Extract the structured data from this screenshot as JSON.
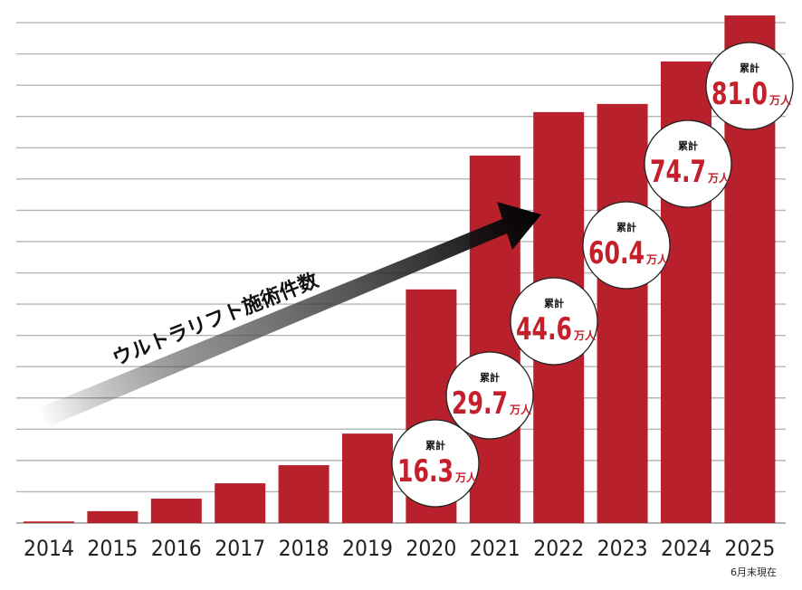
{
  "chart_data": {
    "type": "bar",
    "title": "",
    "xlabel": "",
    "ylabel": "",
    "categories": [
      "2014",
      "2015",
      "2016",
      "2017",
      "2018",
      "2019",
      "2020",
      "2021",
      "2022",
      "2023",
      "2024",
      "2025"
    ],
    "values_in_gridline_units": [
      0.05,
      0.38,
      0.78,
      1.27,
      1.85,
      2.86,
      7.47,
      11.75,
      13.14,
      13.4,
      14.76,
      16.23
    ],
    "ylim_gridline_units": [
      0,
      16
    ],
    "y_axis_labels_shown": false,
    "grid": true,
    "bar_color": "#b8202b",
    "trend_label": "ウルトラリフト施術件数",
    "cumulative_annotations": [
      {
        "year": "2020",
        "label": "累計",
        "value": "16.3",
        "unit": "万人"
      },
      {
        "year": "2021",
        "label": "累計",
        "value": "29.7",
        "unit": "万人"
      },
      {
        "year": "2022",
        "label": "累計",
        "value": "44.6",
        "unit": "万人"
      },
      {
        "year": "2023",
        "label": "累計",
        "value": "60.4",
        "unit": "万人"
      },
      {
        "year": "2024",
        "label": "累計",
        "value": "74.7",
        "unit": "万人"
      },
      {
        "year": "2025",
        "label": "累計",
        "value": "81.0",
        "unit": "万人"
      }
    ],
    "footnote": "6月末現在"
  }
}
